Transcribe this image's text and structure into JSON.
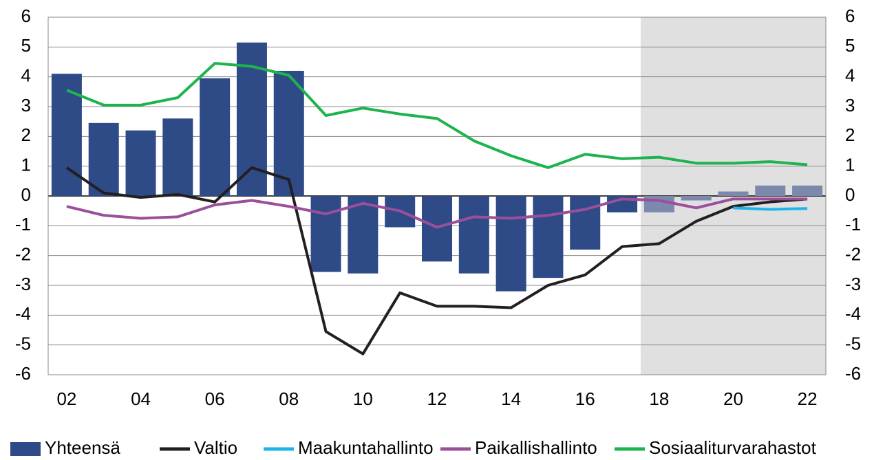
{
  "chart_data": {
    "type": "combo",
    "categories": [
      "02",
      null,
      "04",
      null,
      "06",
      null,
      "08",
      null,
      "10",
      null,
      "12",
      null,
      "14",
      null,
      "16",
      null,
      "18",
      null,
      "20",
      null,
      "22"
    ],
    "series": [
      {
        "name": "Yhteensä",
        "type": "bar",
        "color": "#2e4a87",
        "shaded_color": "#7c89ad",
        "values": [
          4.1,
          2.45,
          2.2,
          2.6,
          3.95,
          5.15,
          4.2,
          -2.55,
          -2.6,
          -1.05,
          -2.2,
          -2.6,
          -3.2,
          -2.75,
          -1.8,
          -0.55,
          -0.55,
          -0.15,
          0.15,
          0.35,
          0.35
        ]
      },
      {
        "name": "Valtio",
        "type": "line",
        "color": "#231f20",
        "values": [
          0.95,
          0.1,
          -0.05,
          0.05,
          -0.2,
          0.95,
          0.55,
          -4.55,
          -5.3,
          -3.25,
          -3.7,
          -3.7,
          -3.75,
          -3.0,
          -2.65,
          -1.7,
          -1.6,
          -0.85,
          -0.35,
          -0.2,
          -0.1
        ]
      },
      {
        "name": "Maakuntahallinto",
        "type": "line",
        "color": "#1fb4e8",
        "values": [
          null,
          null,
          null,
          null,
          null,
          null,
          null,
          null,
          null,
          null,
          null,
          null,
          null,
          null,
          null,
          null,
          null,
          null,
          -0.4,
          -0.45,
          -0.42
        ]
      },
      {
        "name": "Paikallishallinto",
        "type": "line",
        "color": "#9b4f9b",
        "values": [
          -0.35,
          -0.65,
          -0.75,
          -0.7,
          -0.3,
          -0.15,
          -0.35,
          -0.6,
          -0.25,
          -0.5,
          -1.05,
          -0.7,
          -0.75,
          -0.65,
          -0.45,
          -0.1,
          -0.15,
          -0.4,
          -0.1,
          -0.1,
          -0.1
        ]
      },
      {
        "name": "Sosiaaliturvarahastot",
        "type": "line",
        "color": "#1db34d",
        "values": [
          3.55,
          3.05,
          3.05,
          3.3,
          4.45,
          4.35,
          4.05,
          2.7,
          2.95,
          2.75,
          2.6,
          1.85,
          1.35,
          0.95,
          1.4,
          1.25,
          1.3,
          1.1,
          1.1,
          1.15,
          1.05
        ]
      }
    ],
    "ylim": [
      -6,
      6
    ],
    "yticks": [
      -6,
      -5,
      -4,
      -3,
      -2,
      -1,
      0,
      1,
      2,
      3,
      4,
      5,
      6
    ],
    "grid": true,
    "shaded_from_index": 16,
    "shade_color": "#e0e0e0",
    "legend": "bottom"
  }
}
